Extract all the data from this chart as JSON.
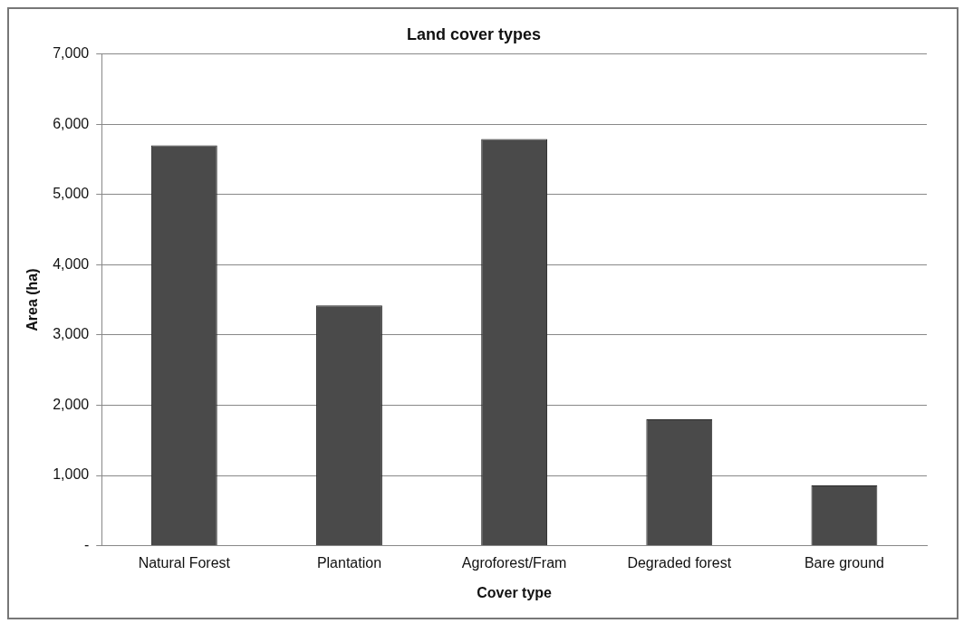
{
  "chart_data": {
    "type": "bar",
    "title": "Land cover types",
    "xlabel": "Cover type",
    "ylabel": "Area (ha)",
    "categories": [
      "Natural Forest",
      "Plantation",
      "Agroforest/Fram",
      "Degraded forest",
      "Bare ground"
    ],
    "values": [
      5700,
      3420,
      5790,
      1800,
      860
    ],
    "color": "#4a4a4a",
    "ylim": [
      0,
      7000
    ],
    "yticks": [
      {
        "value": 0,
        "label": "-"
      },
      {
        "value": 1000,
        "label": "1,000"
      },
      {
        "value": 2000,
        "label": "2,000"
      },
      {
        "value": 3000,
        "label": "3,000"
      },
      {
        "value": 4000,
        "label": "4,000"
      },
      {
        "value": 5000,
        "label": "5,000"
      },
      {
        "value": 6000,
        "label": "6,000"
      },
      {
        "value": 7000,
        "label": "7,000"
      }
    ],
    "grid": "y",
    "legend": false
  }
}
